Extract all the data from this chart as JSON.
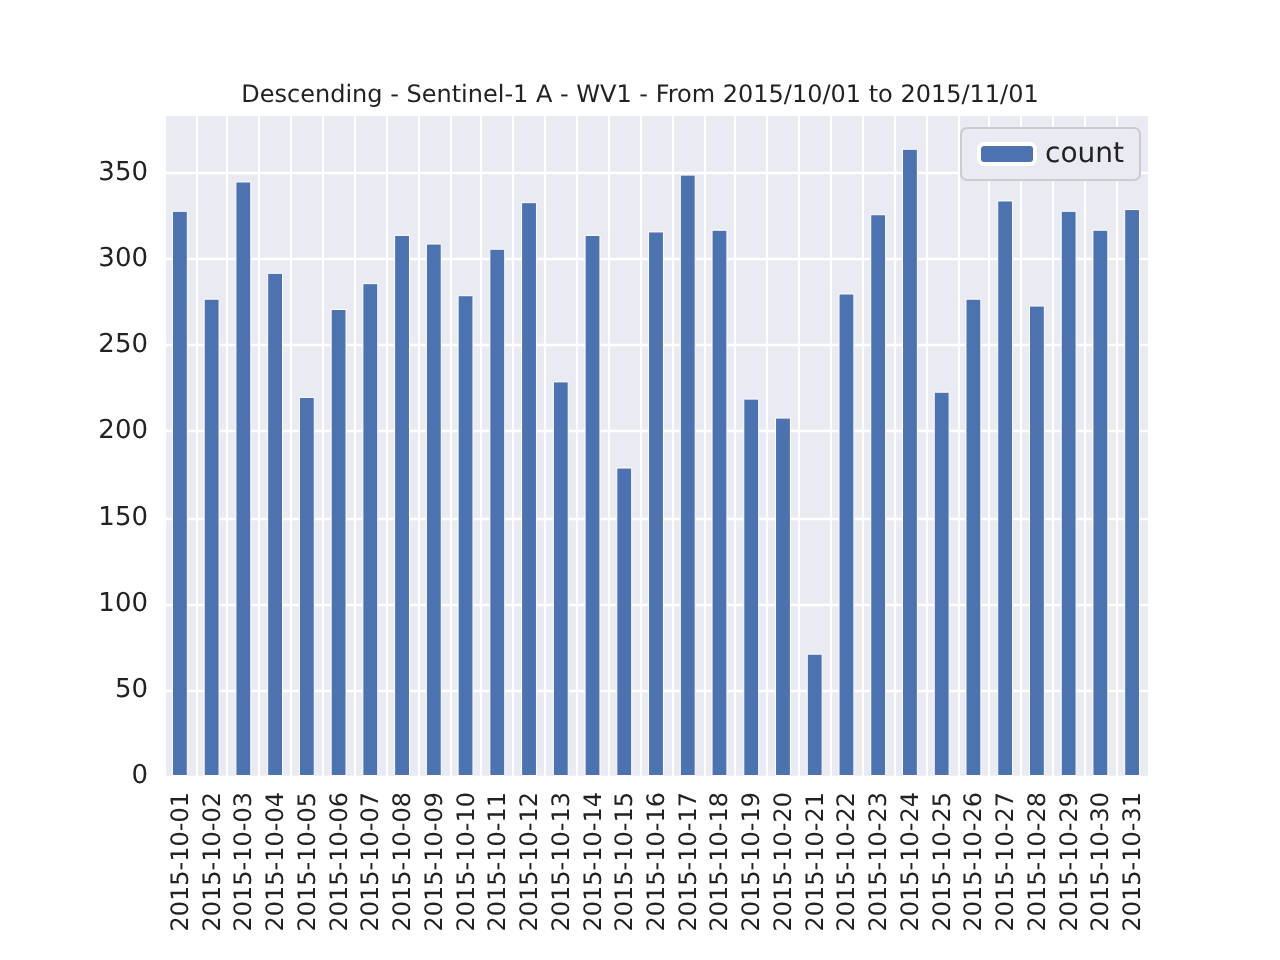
{
  "chart_data": {
    "type": "bar",
    "title": "Descending - Sentinel-1 A - WV1 - From 2015/10/01 to 2015/11/01",
    "categories": [
      "2015-10-01",
      "2015-10-02",
      "2015-10-03",
      "2015-10-04",
      "2015-10-05",
      "2015-10-06",
      "2015-10-07",
      "2015-10-08",
      "2015-10-09",
      "2015-10-10",
      "2015-10-11",
      "2015-10-12",
      "2015-10-13",
      "2015-10-14",
      "2015-10-15",
      "2015-10-16",
      "2015-10-17",
      "2015-10-18",
      "2015-10-19",
      "2015-10-20",
      "2015-10-21",
      "2015-10-22",
      "2015-10-23",
      "2015-10-24",
      "2015-10-25",
      "2015-10-26",
      "2015-10-27",
      "2015-10-28",
      "2015-10-29",
      "2015-10-30",
      "2015-10-31"
    ],
    "series": [
      {
        "name": "count",
        "color": "#4c72b0",
        "values": [
          328,
          277,
          345,
          292,
          220,
          271,
          286,
          314,
          309,
          279,
          306,
          333,
          229,
          314,
          179,
          316,
          349,
          317,
          219,
          208,
          71,
          280,
          326,
          364,
          223,
          277,
          334,
          273,
          328,
          317,
          329
        ]
      }
    ],
    "ylim": [
      0,
      383
    ],
    "yticks": [
      0,
      50,
      100,
      150,
      200,
      250,
      300,
      350
    ],
    "grid": true,
    "legend": "top right"
  }
}
